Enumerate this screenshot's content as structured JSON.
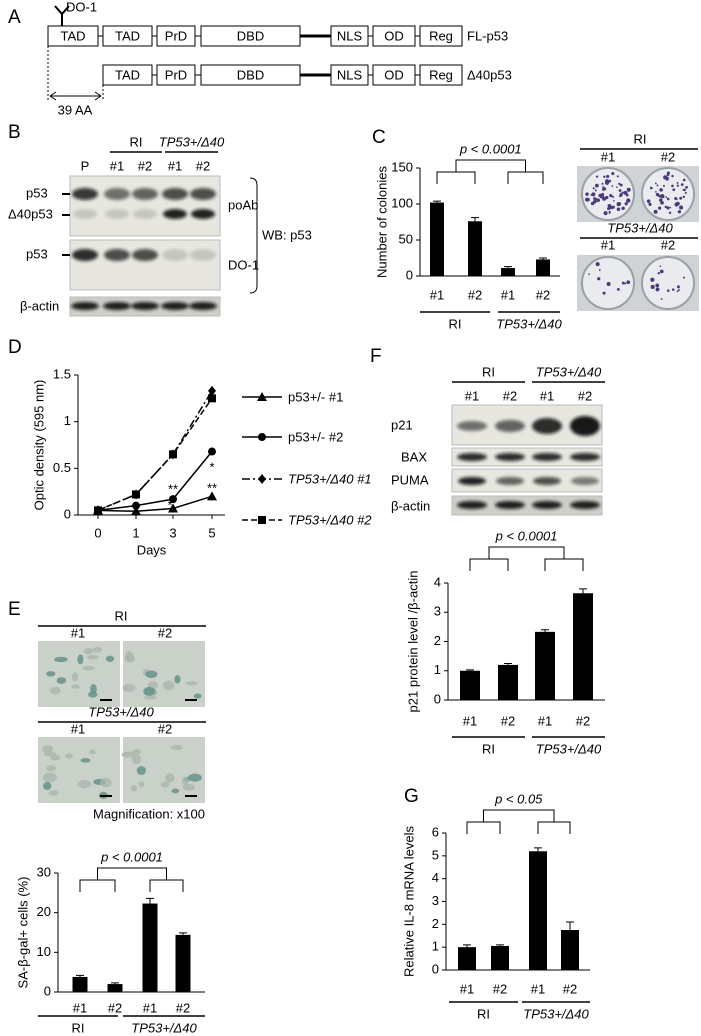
{
  "panel_labels": [
    "A",
    "B",
    "C",
    "D",
    "E",
    "F",
    "G"
  ],
  "domain_diagram": {
    "antibody": "DO-1",
    "deletion": "39 AA",
    "rows": [
      {
        "label": "FL-p53",
        "domains": [
          "TAD",
          "TAD",
          "PrD",
          "DBD",
          "NLS",
          "OD",
          "Reg"
        ]
      },
      {
        "label": "Δ40p53",
        "domains": [
          "TAD",
          "PrD",
          "DBD",
          "NLS",
          "OD",
          "Reg"
        ]
      }
    ]
  },
  "western_blot_b": {
    "groups": [
      "RI",
      "TP53+/Δ40"
    ],
    "lanes": [
      "P",
      "#1",
      "#2",
      "#1",
      "#2"
    ],
    "bands": [
      "p53",
      "Δ40p53",
      "p53",
      "β-actin"
    ],
    "antibodies": [
      "poAb",
      "DO-1"
    ],
    "wb": "WB: p53"
  },
  "colony_images": {
    "groups": [
      "RI",
      "TP53+/Δ40"
    ],
    "clones": [
      "#1",
      "#2",
      "#1",
      "#2"
    ]
  },
  "senescence_images": {
    "groups": [
      "RI",
      "TP53+/Δ40"
    ],
    "clones": [
      "#1",
      "#2",
      "#1",
      "#2"
    ],
    "magnification": "Magnification: x100"
  },
  "western_blot_f": {
    "groups": [
      "RI",
      "TP53+/Δ40"
    ],
    "lanes": [
      "#1",
      "#2",
      "#1",
      "#2"
    ],
    "rows": [
      "p21",
      "BAX",
      "PUMA",
      "β-actin"
    ]
  },
  "chart_data": [
    {
      "type": "bar",
      "y_label": "Number of colonies",
      "categories": [
        "#1",
        "#2",
        "#1",
        "#2"
      ],
      "groups": [
        "RI",
        "TP53+/Δ40"
      ],
      "values": [
        102,
        76,
        11,
        23
      ],
      "errors": [
        2,
        5,
        2,
        2
      ],
      "color": "#000000",
      "ylim": [
        0,
        150
      ],
      "yticks": [
        0,
        50,
        100,
        150
      ],
      "annotation": "p < 0.0001"
    },
    {
      "type": "line",
      "y_label": "Optic density (595 nm)",
      "x_label": "Days",
      "categories": [
        "0",
        "1",
        "3",
        "5"
      ],
      "ylim": [
        0,
        1.5
      ],
      "yticks": [
        0,
        0.5,
        1,
        1.5
      ],
      "annotations": [
        "**",
        "*",
        "*",
        "**"
      ],
      "series": [
        {
          "name": "p53+/- #1",
          "color": "#000000",
          "marker": "triangle",
          "dash": "solid",
          "values": [
            0.05,
            0.04,
            0.07,
            0.2
          ]
        },
        {
          "name": "p53+/- #2",
          "color": "#000000",
          "marker": "circle",
          "dash": "solid",
          "values": [
            0.05,
            0.1,
            0.17,
            0.68
          ]
        },
        {
          "name": "TP53+/Δ40 #1",
          "color": "#000000",
          "marker": "diamond",
          "dash": "dashdot",
          "values": [
            0.05,
            0.22,
            0.65,
            1.33
          ]
        },
        {
          "name": "TP53+/Δ40 #2",
          "color": "#000000",
          "marker": "square",
          "dash": "dashed",
          "values": [
            0.05,
            0.22,
            0.65,
            1.25
          ]
        }
      ]
    },
    {
      "type": "bar",
      "y_label": "SA-β-gal+ cells (%)",
      "categories": [
        "#1",
        "#2",
        "#1",
        "#2"
      ],
      "groups": [
        "RI",
        "TP53+/Δ40"
      ],
      "values": [
        3.8,
        2,
        22.3,
        14.4
      ],
      "errors": [
        0.4,
        0.3,
        1.3,
        0.5
      ],
      "color": "#000000",
      "ylim": [
        0,
        30
      ],
      "yticks": [
        0,
        10,
        20,
        30
      ],
      "annotation": "p < 0.0001"
    },
    {
      "type": "bar",
      "y_label": "p21 protein level /β-actin",
      "categories": [
        "#1",
        "#2",
        "#1",
        "#2"
      ],
      "groups": [
        "RI",
        "TP53+/Δ40"
      ],
      "values": [
        1.0,
        1.2,
        2.33,
        3.65
      ],
      "errors": [
        0.03,
        0.05,
        0.07,
        0.15
      ],
      "color": "#000000",
      "ylim": [
        0,
        4
      ],
      "yticks": [
        0,
        1,
        2,
        3,
        4
      ],
      "annotation": "p < 0.0001"
    },
    {
      "type": "bar",
      "y_label": "Relative IL-8 mRNA levels",
      "categories": [
        "#1",
        "#2",
        "#1",
        "#2"
      ],
      "groups": [
        "RI",
        "TP53+/Δ40"
      ],
      "values": [
        1.0,
        1.05,
        5.2,
        1.75
      ],
      "errors": [
        0.1,
        0.05,
        0.15,
        0.35
      ],
      "color": "#000000",
      "ylim": [
        0,
        6
      ],
      "yticks": [
        0,
        1,
        2,
        3,
        4,
        5,
        6
      ],
      "annotation": "p < 0.05"
    }
  ]
}
